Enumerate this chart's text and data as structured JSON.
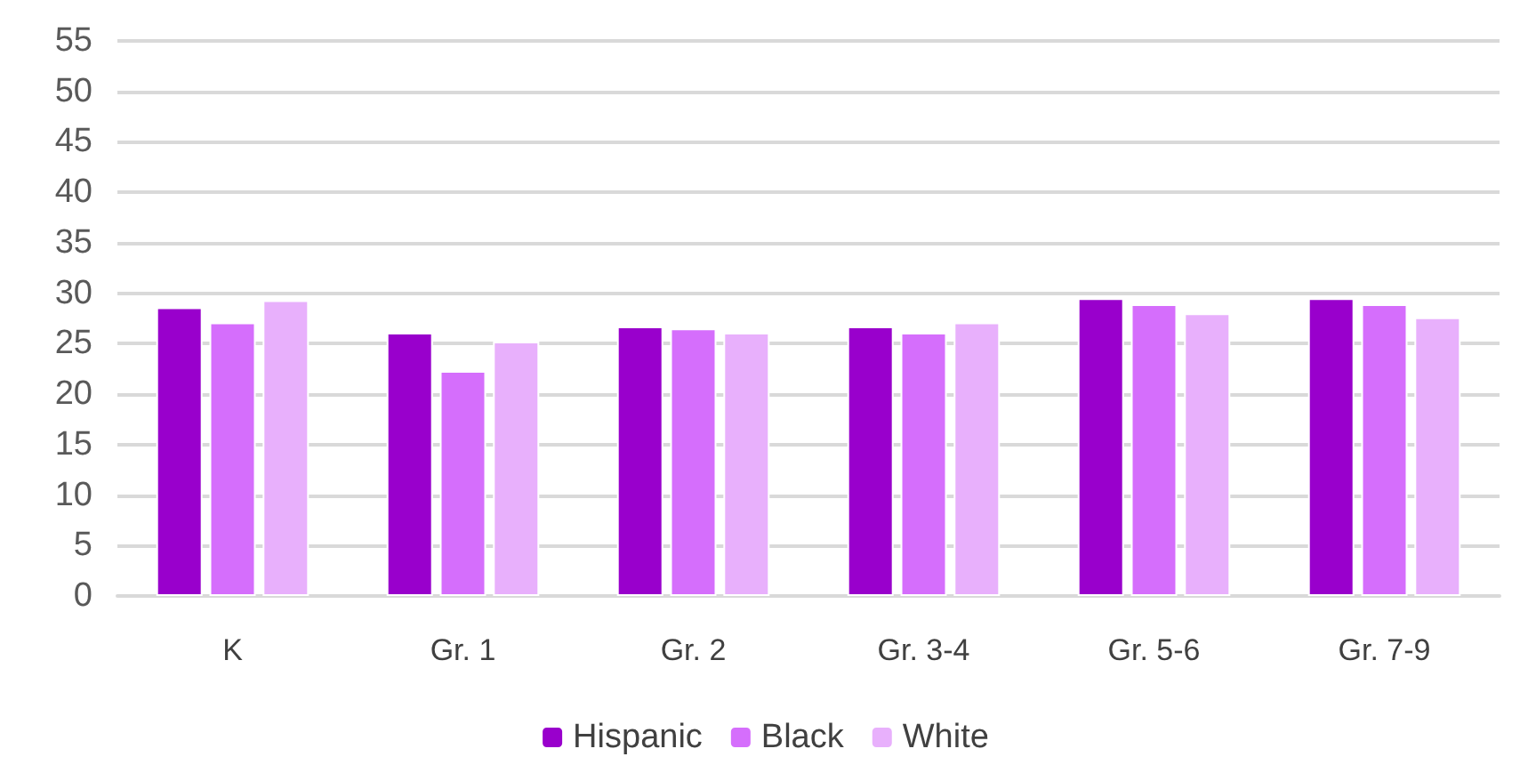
{
  "chart_data": {
    "type": "bar",
    "categories": [
      "K",
      "Gr. 1",
      "Gr. 2",
      "Gr. 3-4",
      "Gr. 5-6",
      "Gr. 7-9"
    ],
    "series": [
      {
        "name": "Hispanic",
        "color": "#9900cc",
        "values": [
          28.6,
          26.1,
          26.7,
          26.7,
          29.5,
          29.5
        ]
      },
      {
        "name": "Black",
        "color": "#d56efc",
        "values": [
          27.1,
          22.3,
          26.5,
          26.1,
          28.9,
          28.9
        ]
      },
      {
        "name": "White",
        "color": "#e8b0fc",
        "values": [
          29.3,
          25.2,
          26.1,
          27.1,
          28.0,
          27.6
        ]
      }
    ],
    "ylim": [
      0,
      55
    ],
    "yticks": [
      0,
      5,
      10,
      15,
      20,
      25,
      30,
      35,
      40,
      45,
      50,
      55
    ],
    "grid": "y",
    "legend": "bottom"
  }
}
